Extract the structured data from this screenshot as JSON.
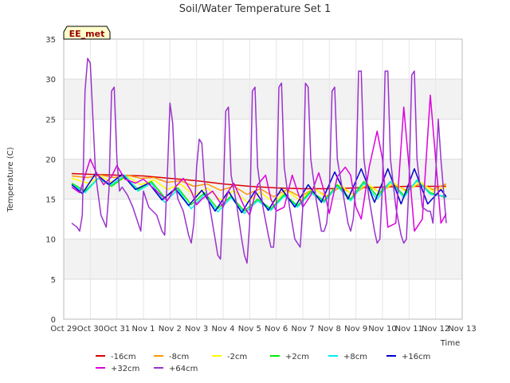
{
  "chart_data": {
    "type": "line",
    "title": "Soil/Water Temperature Set 1",
    "xlabel": "Time",
    "ylabel": "Temperature (C)",
    "ylim": [
      0,
      35
    ],
    "yticks": [
      0,
      5,
      10,
      15,
      20,
      25,
      30,
      35
    ],
    "xlim_days": [
      0,
      15
    ],
    "xticks": [
      {
        "day": 0,
        "label": "Oct 29"
      },
      {
        "day": 1,
        "label": "Oct 30"
      },
      {
        "day": 2,
        "label": "Oct 31"
      },
      {
        "day": 3,
        "label": "Nov 1"
      },
      {
        "day": 4,
        "label": "Nov 2"
      },
      {
        "day": 5,
        "label": "Nov 3"
      },
      {
        "day": 6,
        "label": "Nov 4"
      },
      {
        "day": 7,
        "label": "Nov 5"
      },
      {
        "day": 8,
        "label": "Nov 6"
      },
      {
        "day": 9,
        "label": "Nov 7"
      },
      {
        "day": 10,
        "label": "Nov 8"
      },
      {
        "day": 11,
        "label": "Nov 9"
      },
      {
        "day": 12,
        "label": "Nov 10"
      },
      {
        "day": 13,
        "label": "Nov 11"
      },
      {
        "day": 14,
        "label": "Nov 12"
      },
      {
        "day": 15,
        "label": "Nov 13"
      }
    ],
    "grid": true,
    "legend_placement": "bottom",
    "annotation": "EE_met",
    "x_unit_note": "x values are day positions along the time axis (Oct 29 = 0)",
    "series": [
      {
        "name": "-16cm",
        "color": "#dd0000",
        "x": [
          0.3,
          1,
          2,
          3,
          4,
          5,
          6,
          7,
          8,
          9,
          10,
          11,
          12,
          13,
          14,
          14.4
        ],
        "y": [
          18.2,
          18.1,
          18.0,
          17.9,
          17.6,
          17.3,
          16.9,
          16.6,
          16.4,
          16.3,
          16.3,
          16.4,
          16.5,
          16.6,
          16.6,
          16.6
        ]
      },
      {
        "name": "-8cm",
        "color": "#ff9900",
        "x": [
          0.3,
          0.9,
          1.4,
          1.9,
          2.4,
          2.9,
          3.4,
          3.9,
          4.4,
          4.9,
          5.4,
          5.9,
          6.4,
          6.9,
          7.4,
          7.9,
          8.4,
          8.9,
          9.4,
          9.9,
          10.4,
          10.9,
          11.4,
          11.9,
          12.4,
          12.9,
          13.4,
          13.9,
          14.4
        ],
        "y": [
          17.9,
          17.7,
          18.0,
          17.7,
          18.0,
          17.6,
          17.7,
          17.1,
          17.3,
          16.6,
          16.9,
          16.1,
          16.6,
          15.6,
          16.3,
          15.3,
          16.2,
          15.3,
          16.3,
          15.4,
          16.5,
          15.6,
          16.7,
          15.9,
          16.8,
          16.1,
          16.9,
          16.2,
          16.9
        ]
      },
      {
        "name": "-2cm",
        "color": "#ffff00",
        "x": [
          0.3,
          0.9,
          1.4,
          1.9,
          2.4,
          2.9,
          3.4,
          3.9,
          4.4,
          4.9,
          5.4,
          5.9,
          6.4,
          6.9,
          7.4,
          7.9,
          8.4,
          8.9,
          9.4,
          9.9,
          10.4,
          10.9,
          11.4,
          11.9,
          12.4,
          12.9,
          13.4,
          13.9,
          14.4
        ],
        "y": [
          17.6,
          17.0,
          17.8,
          17.0,
          17.8,
          16.8,
          17.4,
          16.2,
          16.9,
          15.5,
          16.4,
          14.9,
          16.1,
          14.6,
          15.9,
          14.6,
          16.1,
          14.8,
          16.4,
          15.2,
          16.8,
          15.5,
          17.0,
          15.8,
          17.1,
          15.9,
          17.2,
          16.0,
          16.5
        ]
      },
      {
        "name": "+2cm",
        "color": "#00ee00",
        "x": [
          0.3,
          0.8,
          1.3,
          1.8,
          2.3,
          2.8,
          3.3,
          3.8,
          4.3,
          4.8,
          5.3,
          5.8,
          6.3,
          6.8,
          7.3,
          7.8,
          8.3,
          8.8,
          9.3,
          9.8,
          10.3,
          10.8,
          11.3,
          11.8,
          12.3,
          12.8,
          13.3,
          13.8,
          14.3,
          14.4
        ],
        "y": [
          17.0,
          16.0,
          17.6,
          16.6,
          17.8,
          16.2,
          17.2,
          15.2,
          16.4,
          14.3,
          15.8,
          13.8,
          15.4,
          13.5,
          15.0,
          13.8,
          15.6,
          14.2,
          16.0,
          14.8,
          16.8,
          15.0,
          17.2,
          15.4,
          17.2,
          15.5,
          17.3,
          15.8,
          15.3,
          15.2
        ]
      },
      {
        "name": "+8cm",
        "color": "#00eeee",
        "x": [
          0.3,
          0.8,
          1.3,
          1.8,
          2.3,
          2.8,
          3.3,
          3.8,
          4.3,
          4.8,
          5.3,
          5.8,
          6.3,
          6.8,
          7.3,
          7.8,
          8.3,
          8.8,
          9.3,
          9.8,
          10.3,
          10.8,
          11.3,
          11.8,
          12.3,
          12.8,
          13.3,
          13.8,
          14.3,
          14.4
        ],
        "y": [
          16.8,
          15.8,
          17.6,
          16.8,
          18.0,
          16.0,
          17.0,
          14.6,
          16.2,
          13.8,
          15.6,
          13.4,
          15.2,
          13.2,
          14.8,
          13.6,
          15.4,
          14.0,
          15.8,
          14.6,
          16.6,
          14.8,
          17.0,
          15.0,
          17.2,
          15.2,
          17.4,
          15.6,
          15.4,
          15.2
        ]
      },
      {
        "name": "+16cm",
        "color": "#0000cc",
        "x": [
          0.3,
          0.7,
          1.2,
          1.7,
          2.2,
          2.7,
          3.2,
          3.7,
          4.2,
          4.7,
          5.2,
          5.7,
          6.2,
          6.7,
          7.2,
          7.7,
          8.2,
          8.7,
          9.2,
          9.7,
          10.2,
          10.7,
          11.2,
          11.7,
          12.2,
          12.7,
          13.2,
          13.7,
          14.2,
          14.4
        ],
        "y": [
          16.8,
          15.7,
          18.2,
          16.8,
          18.1,
          16.2,
          17.0,
          14.9,
          16.3,
          14.2,
          16.1,
          13.5,
          16.0,
          13.3,
          16.0,
          13.6,
          16.3,
          14.0,
          16.8,
          14.6,
          18.4,
          15.0,
          18.8,
          14.6,
          18.8,
          14.4,
          18.8,
          14.4,
          16.2,
          15.3
        ]
      },
      {
        "name": "+32cm",
        "color": "#dd00dd",
        "x": [
          0.3,
          0.6,
          0.9,
          1.0,
          1.2,
          1.5,
          1.8,
          2.0,
          2.3,
          2.7,
          3.0,
          3.5,
          3.9,
          4.2,
          4.5,
          4.8,
          5.0,
          5.2,
          5.6,
          6.0,
          6.2,
          6.4,
          6.8,
          7.0,
          7.3,
          7.6,
          7.8,
          8.0,
          8.3,
          8.6,
          8.8,
          9.0,
          9.3,
          9.6,
          9.8,
          10.0,
          10.3,
          10.6,
          10.8,
          11.0,
          11.2,
          11.5,
          11.8,
          12.0,
          12.2,
          12.5,
          12.8,
          13.0,
          13.2,
          13.5,
          13.8,
          14.0,
          14.2,
          14.4
        ],
        "y": [
          16.5,
          15.8,
          19.0,
          20.0,
          18.5,
          16.8,
          17.8,
          19.2,
          17.5,
          17.0,
          17.5,
          16.0,
          14.8,
          16.5,
          17.6,
          16.0,
          14.3,
          15.0,
          16.0,
          14.0,
          16.0,
          17.0,
          14.0,
          13.0,
          16.8,
          18.0,
          15.0,
          13.5,
          14.0,
          18.0,
          16.0,
          14.0,
          15.5,
          18.3,
          16.0,
          13.2,
          17.8,
          19.0,
          18.0,
          14.0,
          12.5,
          19.0,
          23.5,
          20.0,
          11.5,
          12.0,
          26.5,
          19.0,
          11.0,
          12.5,
          28.0,
          20.0,
          12.0,
          13.2
        ]
      },
      {
        "name": "+64cm",
        "color": "#9933cc",
        "x": [
          0.3,
          0.5,
          0.6,
          0.7,
          0.8,
          0.9,
          1.0,
          1.2,
          1.4,
          1.6,
          1.7,
          1.8,
          1.9,
          2.0,
          2.1,
          2.2,
          2.4,
          2.6,
          2.8,
          2.9,
          3.0,
          3.2,
          3.5,
          3.7,
          3.8,
          3.9,
          4.0,
          4.1,
          4.2,
          4.3,
          4.5,
          4.7,
          4.8,
          4.9,
          5.0,
          5.1,
          5.2,
          5.3,
          5.5,
          5.7,
          5.8,
          5.9,
          6.0,
          6.1,
          6.2,
          6.3,
          6.5,
          6.7,
          6.8,
          6.9,
          7.0,
          7.1,
          7.2,
          7.3,
          7.5,
          7.7,
          7.8,
          7.9,
          8.0,
          8.1,
          8.2,
          8.3,
          8.5,
          8.7,
          8.8,
          8.9,
          9.0,
          9.1,
          9.2,
          9.3,
          9.5,
          9.7,
          9.8,
          9.9,
          10.0,
          10.1,
          10.2,
          10.3,
          10.5,
          10.7,
          10.8,
          10.9,
          11.0,
          11.1,
          11.2,
          11.3,
          11.5,
          11.7,
          11.8,
          11.9,
          12.0,
          12.1,
          12.2,
          12.3,
          12.5,
          12.7,
          12.8,
          12.9,
          13.0,
          13.1,
          13.2,
          13.3,
          13.5,
          13.7,
          13.8,
          13.9,
          14.0,
          14.1,
          14.2,
          14.4
        ],
        "y": [
          12.0,
          11.5,
          11.0,
          13.0,
          28.5,
          32.6,
          32.0,
          18.0,
          13.0,
          11.5,
          16.0,
          28.5,
          29.0,
          20.0,
          16.0,
          16.5,
          15.5,
          14.0,
          12.0,
          11.0,
          16.0,
          14.0,
          13.0,
          11.0,
          10.5,
          18.0,
          27.0,
          24.5,
          17.0,
          15.0,
          13.5,
          10.5,
          9.5,
          12.0,
          19.0,
          22.5,
          22.0,
          17.0,
          14.0,
          10.0,
          8.0,
          7.5,
          15.0,
          26.0,
          26.5,
          18.0,
          14.5,
          10.0,
          8.0,
          7.0,
          12.0,
          28.5,
          29.0,
          19.0,
          14.0,
          10.5,
          9.0,
          9.0,
          14.0,
          29.0,
          29.5,
          19.0,
          14.0,
          10.0,
          9.5,
          9.0,
          14.0,
          29.5,
          29.0,
          20.0,
          15.0,
          11.0,
          11.0,
          12.0,
          16.0,
          28.5,
          29.0,
          20.0,
          16.0,
          12.0,
          11.0,
          12.5,
          17.0,
          31.0,
          31.0,
          20.0,
          15.0,
          11.0,
          9.5,
          10.0,
          17.0,
          31.0,
          31.0,
          20.0,
          14.0,
          10.5,
          9.5,
          10.0,
          17.0,
          30.5,
          31.0,
          20.0,
          14.0,
          13.5,
          13.5,
          12.0,
          18.0,
          25.0,
          20.0,
          12.0
        ]
      }
    ]
  }
}
